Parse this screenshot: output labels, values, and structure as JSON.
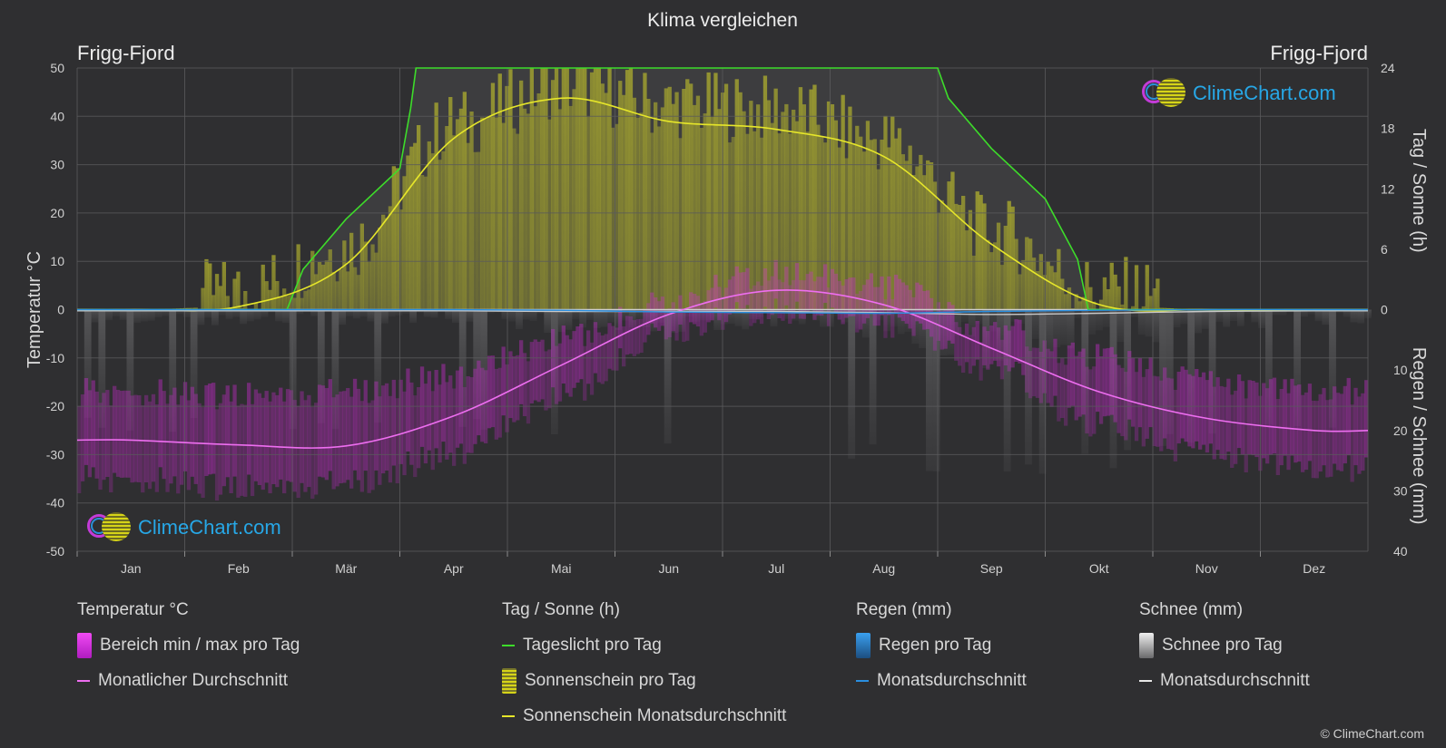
{
  "chart_title": "Klima vergleichen",
  "location_left": "Frigg-Fjord",
  "location_right": "Frigg-Fjord",
  "logo_text": "ClimeChart.com",
  "copyright": "© ClimeChart.com",
  "colors": {
    "background": "#2f2f31",
    "grid": "#5a5a5c",
    "daylight": "#3ddc2a",
    "sunshine_avg": "#e6e62a",
    "sunshine_fill": "#a8a82e",
    "temp_avg": "#ee6ef0",
    "temp_range": "#d22ad8",
    "rain": "#2a8fe0",
    "snow_avg": "#c8c8c8",
    "snow_fill": "#8a8a8c"
  },
  "chart_data": {
    "type": "line",
    "title": "Klima vergleichen",
    "months": [
      "Jan",
      "Feb",
      "Mär",
      "Apr",
      "Mai",
      "Jun",
      "Jul",
      "Aug",
      "Sep",
      "Okt",
      "Nov",
      "Dez"
    ],
    "axes": {
      "left": {
        "label": "Temperatur °C",
        "min": -50,
        "max": 50,
        "ticks": [
          50,
          40,
          30,
          20,
          10,
          0,
          -10,
          -20,
          -30,
          -40,
          -50
        ]
      },
      "right_top": {
        "label": "Tag / Sonne (h)",
        "min": 0,
        "max": 24,
        "ticks": [
          24,
          18,
          12,
          6,
          0
        ]
      },
      "right_bottom": {
        "label": "Regen / Schnee (mm)",
        "min": 0,
        "max": 40,
        "ticks": [
          0,
          10,
          20,
          30,
          40
        ]
      }
    },
    "series": [
      {
        "name": "Tageslicht pro Tag",
        "axis": "hours",
        "points": [
          [
            0,
            0
          ],
          [
            1.5,
            0
          ],
          [
            1.95,
            0
          ],
          [
            2.1,
            4
          ],
          [
            2.5,
            9
          ],
          [
            3.0,
            14
          ],
          [
            3.1,
            20
          ],
          [
            3.15,
            24
          ],
          [
            8.0,
            24
          ],
          [
            8.1,
            21
          ],
          [
            8.5,
            16
          ],
          [
            9.0,
            11
          ],
          [
            9.3,
            5
          ],
          [
            9.4,
            0
          ],
          [
            12,
            0
          ]
        ]
      },
      {
        "name": "Sonnenschein pro Tag",
        "axis": "hours",
        "values": [
          0,
          0.3,
          4.8,
          17,
          21,
          19,
          18.5,
          15.5,
          6.5,
          0.5,
          0,
          0
        ]
      },
      {
        "name": "Sonnenschein Monatsdurchschnitt",
        "axis": "hours",
        "values": [
          0,
          0.3,
          4.5,
          17,
          21,
          18.7,
          17.9,
          15.2,
          6.5,
          0.5,
          0,
          0
        ]
      },
      {
        "name": "Monatlicher Durchschnitt",
        "axis": "temp",
        "values": [
          -27,
          -28,
          -28.2,
          -22,
          -11.5,
          -1,
          4,
          1,
          -8,
          -17,
          -22.5,
          -25
        ]
      },
      {
        "name": "Bereich min / max pro Tag",
        "axis": "temp",
        "min": [
          -35,
          -37,
          -36,
          -30,
          -18,
          -4,
          0,
          -3,
          -12,
          -24,
          -30,
          -33
        ],
        "max": [
          -17,
          -18,
          -17,
          -14,
          -6,
          2,
          8,
          5,
          -4,
          -10,
          -15,
          -17
        ]
      },
      {
        "name": "Monatsdurchschnitt (Regen)",
        "axis": "precip",
        "values": [
          0,
          0,
          0,
          0,
          0.1,
          0.4,
          0.5,
          0.6,
          0.3,
          0.1,
          0,
          0
        ]
      },
      {
        "name": "Monatsdurchschnitt (Schnee)",
        "axis": "precip",
        "values": [
          0.2,
          0.2,
          0.2,
          0.2,
          0.3,
          0.3,
          0.3,
          0.5,
          0.8,
          0.6,
          0.3,
          0.2
        ]
      }
    ],
    "grid": true,
    "legend_position": "bottom"
  },
  "legend": {
    "groups": [
      {
        "heading": "Temperatur °C",
        "items": [
          {
            "label": "Bereich min / max pro Tag",
            "swatch": "temp-range"
          },
          {
            "label": "Monatlicher Durchschnitt",
            "swatch": "temp-avg"
          }
        ]
      },
      {
        "heading": "Tag / Sonne (h)",
        "items": [
          {
            "label": "Tageslicht pro Tag",
            "swatch": "daylight"
          },
          {
            "label": "Sonnenschein pro Tag",
            "swatch": "sunshine-fill"
          },
          {
            "label": "Sonnenschein Monatsdurchschnitt",
            "swatch": "sunshine-avg"
          }
        ]
      },
      {
        "heading": "Regen (mm)",
        "items": [
          {
            "label": "Regen pro Tag",
            "swatch": "rain-fill"
          },
          {
            "label": "Monatsdurchschnitt",
            "swatch": "rain-avg"
          }
        ]
      },
      {
        "heading": "Schnee (mm)",
        "items": [
          {
            "label": "Schnee pro Tag",
            "swatch": "snow-fill"
          },
          {
            "label": "Monatsdurchschnitt",
            "swatch": "snow-avg"
          }
        ]
      }
    ]
  }
}
